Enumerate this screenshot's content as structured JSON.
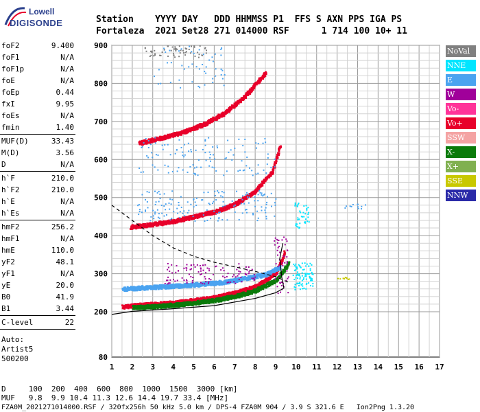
{
  "logo": {
    "line1": "Lowell",
    "line2": "DIGISONDE"
  },
  "header": {
    "row1": "Station    YYYY DAY   DDD HHMMSS P1  FFS S AXN PPS IGA PS",
    "row2": "Fortaleza  2021 Set28 271 014000 RSF      1 714 100 10+ 11"
  },
  "params": [
    {
      "group": [
        {
          "name": "foF2",
          "value": "9.400"
        },
        {
          "name": "foF1",
          "value": "N/A"
        },
        {
          "name": "foF1p",
          "value": "N/A"
        },
        {
          "name": "foE",
          "value": "N/A"
        },
        {
          "name": "foEp",
          "value": "0.44"
        },
        {
          "name": "fxI",
          "value": "9.95"
        },
        {
          "name": "foEs",
          "value": "N/A"
        },
        {
          "name": "fmin",
          "value": "1.40"
        }
      ]
    },
    {
      "group": [
        {
          "name": "MUF(D)",
          "value": "33.43"
        },
        {
          "name": "M(D)",
          "value": "3.56"
        },
        {
          "name": "D",
          "value": "N/A"
        }
      ]
    },
    {
      "group": [
        {
          "name": "h`F",
          "value": "210.0"
        },
        {
          "name": "h`F2",
          "value": "210.0"
        },
        {
          "name": "h`E",
          "value": "N/A"
        },
        {
          "name": "h`Es",
          "value": "N/A"
        }
      ]
    },
    {
      "group": [
        {
          "name": "hmF2",
          "value": "256.2"
        },
        {
          "name": "hmF1",
          "value": "N/A"
        },
        {
          "name": "hmE",
          "value": "110.0"
        },
        {
          "name": "yF2",
          "value": "48.1"
        },
        {
          "name": "yF1",
          "value": "N/A"
        },
        {
          "name": "yE",
          "value": "20.0"
        },
        {
          "name": "B0",
          "value": "41.9"
        },
        {
          "name": "B1",
          "value": "3.44"
        }
      ]
    },
    {
      "group": [
        {
          "name": "C-level",
          "value": "22"
        }
      ]
    }
  ],
  "auto": {
    "line1": "Auto:",
    "line2": "Artist5",
    "line3": "500200"
  },
  "legend": [
    {
      "label": "NoVal",
      "color": "#808080"
    },
    {
      "label": "NNE",
      "color": "#00e5ff"
    },
    {
      "label": "E",
      "color": "#4aa3f0"
    },
    {
      "label": "W",
      "color": "#a0009a"
    },
    {
      "label": "Vo-",
      "color": "#ff3399"
    },
    {
      "label": "Vo+",
      "color": "#e8002a"
    },
    {
      "label": "SSW",
      "color": "#f4a3a3"
    },
    {
      "label": "X-",
      "color": "#0a7a0a"
    },
    {
      "label": "X+",
      "color": "#80b050"
    },
    {
      "label": "SSE",
      "color": "#c8c800"
    },
    {
      "label": "NNW",
      "color": "#2a2aa8"
    }
  ],
  "footer": {
    "row1": "D     100  200  400  600  800  1000  1500  3000 [km]",
    "row2": "MUF   9.8  9.9 10.4 11.3 12.6 14.4 19.7 33.4 [MHz]",
    "file": "FZA0M_2021271014000.RSF / 320fx256h 50 kHz 5.0 km / DPS-4 FZA0M 904 / 3.9 S 321.6 E   Ion2Png 1.3.20"
  },
  "chart_data": {
    "type": "scatter",
    "xlim": [
      1,
      17
    ],
    "ylim": [
      80,
      900
    ],
    "x_ticks": [
      1,
      2,
      3,
      4,
      5,
      6,
      7,
      8,
      9,
      10,
      11,
      12,
      13,
      14,
      15,
      16,
      17
    ],
    "y_ticks": [
      80,
      200,
      300,
      400,
      500,
      600,
      700,
      800,
      900
    ],
    "grid": true,
    "series": [
      {
        "name": "Vo+",
        "color": "#e8002a",
        "x": [
          1.5,
          2.0,
          3.0,
          4.0,
          5.0,
          6.0,
          7.0,
          8.0,
          8.5,
          9.0,
          9.3,
          9.4
        ],
        "y": [
          215,
          218,
          222,
          226,
          232,
          240,
          252,
          268,
          285,
          305,
          340,
          360
        ]
      },
      {
        "name": "X-",
        "color": "#0a7a0a",
        "x": [
          2.0,
          3.0,
          4.0,
          5.0,
          6.0,
          7.0,
          8.0,
          9.0,
          9.6
        ],
        "y": [
          213,
          216,
          220,
          225,
          232,
          243,
          258,
          285,
          330
        ]
      },
      {
        "name": "E",
        "color": "#4aa3f0",
        "x": [
          1.5,
          2.5,
          3.5,
          4.5,
          5.5,
          6.5,
          7.5,
          8.5,
          9.2
        ],
        "y": [
          262,
          265,
          268,
          271,
          275,
          280,
          290,
          300,
          320
        ]
      },
      {
        "name": "Vo+ 2nd hop",
        "color": "#e8002a",
        "x": [
          1.9,
          3.0,
          4.0,
          5.0,
          6.0,
          7.0,
          8.0,
          8.8,
          9.2
        ],
        "y": [
          425,
          432,
          440,
          452,
          465,
          485,
          520,
          570,
          640
        ]
      },
      {
        "name": "Vo+ 3rd hop",
        "color": "#e8002a",
        "x": [
          2.3,
          3.5,
          4.5,
          5.5,
          6.5,
          7.5,
          8.5
        ],
        "y": [
          645,
          660,
          675,
          695,
          725,
          770,
          830
        ]
      }
    ]
  }
}
